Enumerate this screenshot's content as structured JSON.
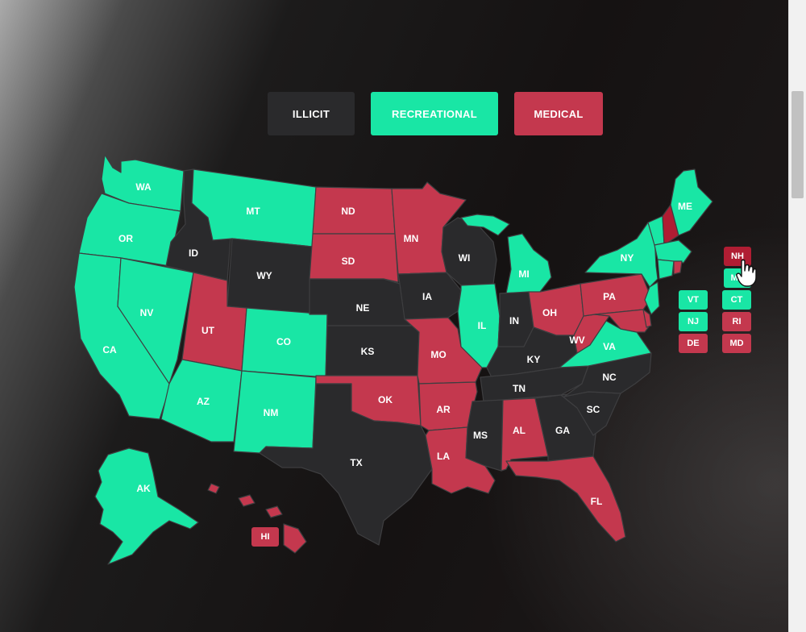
{
  "legend": {
    "illicit_label": "ILLICIT",
    "recreational_label": "RECREATIONAL",
    "medical_label": "MEDICAL"
  },
  "colors": {
    "illicit": "#2a2a2c",
    "recreational": "#19e6a5",
    "medical": "#c4384e",
    "medical_hover": "#b01d33"
  },
  "states": {
    "WA": {
      "label": "WA",
      "status": "recreational"
    },
    "OR": {
      "label": "OR",
      "status": "recreational"
    },
    "CA": {
      "label": "CA",
      "status": "recreational"
    },
    "NV": {
      "label": "NV",
      "status": "recreational"
    },
    "ID": {
      "label": "ID",
      "status": "illicit"
    },
    "MT": {
      "label": "MT",
      "status": "recreational"
    },
    "WY": {
      "label": "WY",
      "status": "illicit"
    },
    "UT": {
      "label": "UT",
      "status": "medical"
    },
    "AZ": {
      "label": "AZ",
      "status": "recreational"
    },
    "CO": {
      "label": "CO",
      "status": "recreational"
    },
    "NM": {
      "label": "NM",
      "status": "recreational"
    },
    "ND": {
      "label": "ND",
      "status": "medical"
    },
    "SD": {
      "label": "SD",
      "status": "medical"
    },
    "NE": {
      "label": "NE",
      "status": "illicit"
    },
    "KS": {
      "label": "KS",
      "status": "illicit"
    },
    "OK": {
      "label": "OK",
      "status": "medical"
    },
    "TX": {
      "label": "TX",
      "status": "illicit"
    },
    "MN": {
      "label": "MN",
      "status": "medical"
    },
    "IA": {
      "label": "IA",
      "status": "illicit"
    },
    "MO": {
      "label": "MO",
      "status": "medical"
    },
    "AR": {
      "label": "AR",
      "status": "medical"
    },
    "LA": {
      "label": "LA",
      "status": "medical"
    },
    "WI": {
      "label": "WI",
      "status": "illicit"
    },
    "IL": {
      "label": "IL",
      "status": "recreational"
    },
    "MI": {
      "label": "MI",
      "status": "recreational"
    },
    "IN": {
      "label": "IN",
      "status": "illicit"
    },
    "OH": {
      "label": "OH",
      "status": "medical"
    },
    "KY": {
      "label": "KY",
      "status": "illicit"
    },
    "TN": {
      "label": "TN",
      "status": "illicit"
    },
    "MS": {
      "label": "MS",
      "status": "illicit"
    },
    "AL": {
      "label": "AL",
      "status": "medical"
    },
    "GA": {
      "label": "GA",
      "status": "illicit"
    },
    "FL": {
      "label": "FL",
      "status": "medical"
    },
    "SC": {
      "label": "SC",
      "status": "illicit"
    },
    "NC": {
      "label": "NC",
      "status": "illicit"
    },
    "VA": {
      "label": "VA",
      "status": "recreational"
    },
    "WV": {
      "label": "WV",
      "status": "medical"
    },
    "PA": {
      "label": "PA",
      "status": "medical"
    },
    "NY": {
      "label": "NY",
      "status": "recreational"
    },
    "ME": {
      "label": "ME",
      "status": "recreational"
    },
    "AK": {
      "label": "AK",
      "status": "recreational"
    },
    "HI": {
      "label": "HI",
      "status": "medical"
    },
    "VT": {
      "label": "VT",
      "status": "recreational"
    },
    "NH": {
      "label": "NH",
      "status": "medical"
    },
    "MA": {
      "label": "MA",
      "status": "recreational"
    },
    "CT": {
      "label": "CT",
      "status": "recreational"
    },
    "RI": {
      "label": "RI",
      "status": "medical"
    },
    "NJ": {
      "label": "NJ",
      "status": "recreational"
    },
    "DE": {
      "label": "DE",
      "status": "medical"
    },
    "MD": {
      "label": "MD",
      "status": "medical"
    }
  },
  "hovered_state": "NH",
  "cursor_icon": "hand-pointer-icon"
}
